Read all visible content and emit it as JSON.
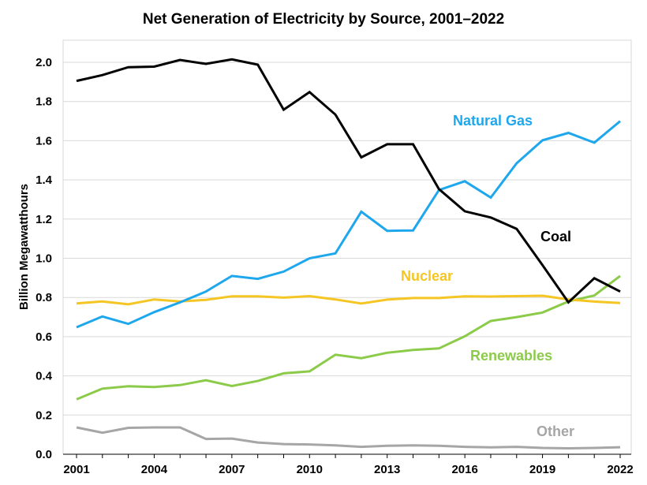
{
  "chart_data": {
    "type": "line",
    "title": "Net Generation of Electricity by Source, 2001–2022",
    "xlabel": "",
    "ylabel": "Billion Megawatthours",
    "x": [
      2001,
      2002,
      2003,
      2004,
      2005,
      2006,
      2007,
      2008,
      2009,
      2010,
      2011,
      2012,
      2013,
      2014,
      2015,
      2016,
      2017,
      2018,
      2019,
      2020,
      2021,
      2022
    ],
    "x_tick_labels": [
      "2001",
      "2004",
      "2007",
      "2010",
      "2013",
      "2016",
      "2019",
      "2022"
    ],
    "x_ticks": [
      2001,
      2004,
      2007,
      2010,
      2013,
      2016,
      2019,
      2022
    ],
    "y_tick_labels": [
      "0.0",
      "0.2",
      "0.4",
      "0.6",
      "0.8",
      "1.0",
      "1.2",
      "1.4",
      "1.6",
      "1.8",
      "2.0"
    ],
    "y_ticks": [
      0,
      0.2,
      0.4,
      0.6,
      0.8,
      1.0,
      1.2,
      1.4,
      1.6,
      1.8,
      2.0
    ],
    "xlim": [
      2001,
      2022
    ],
    "ylim": [
      0,
      2.0
    ],
    "grid": "horizontal",
    "series": [
      {
        "name": "Coal",
        "color": "#000000",
        "label_position": "right of line, near 2019",
        "values": [
          1.905,
          1.935,
          1.975,
          1.978,
          2.012,
          1.992,
          2.015,
          1.988,
          1.758,
          1.848,
          1.733,
          1.515,
          1.582,
          1.582,
          1.353,
          1.24,
          1.208,
          1.15,
          0.965,
          0.775,
          0.898,
          0.83
        ]
      },
      {
        "name": "Natural Gas",
        "color": "#1ea7ec",
        "label_position": "upper right",
        "values": [
          0.648,
          0.703,
          0.665,
          0.725,
          0.775,
          0.83,
          0.91,
          0.895,
          0.932,
          1.0,
          1.025,
          1.238,
          1.14,
          1.142,
          1.348,
          1.393,
          1.31,
          1.485,
          1.602,
          1.64,
          1.59,
          1.7
        ]
      },
      {
        "name": "Nuclear",
        "color": "#f5c623",
        "label_position": "above line, center-right",
        "values": [
          0.77,
          0.78,
          0.765,
          0.79,
          0.78,
          0.788,
          0.806,
          0.806,
          0.799,
          0.807,
          0.79,
          0.769,
          0.789,
          0.797,
          0.797,
          0.806,
          0.805,
          0.807,
          0.809,
          0.79,
          0.779,
          0.772
        ]
      },
      {
        "name": "Renewables",
        "color": "#8ccb4a",
        "label_position": "below line, right",
        "values": [
          0.28,
          0.335,
          0.347,
          0.343,
          0.353,
          0.378,
          0.348,
          0.374,
          0.413,
          0.423,
          0.508,
          0.49,
          0.518,
          0.532,
          0.54,
          0.602,
          0.68,
          0.7,
          0.723,
          0.78,
          0.81,
          0.91
        ]
      },
      {
        "name": "Other",
        "color": "#a6a6a6",
        "label_position": "above line, right",
        "values": [
          0.137,
          0.11,
          0.135,
          0.137,
          0.137,
          0.078,
          0.08,
          0.06,
          0.052,
          0.05,
          0.045,
          0.038,
          0.043,
          0.045,
          0.043,
          0.038,
          0.035,
          0.038,
          0.032,
          0.03,
          0.032,
          0.036
        ]
      }
    ]
  }
}
